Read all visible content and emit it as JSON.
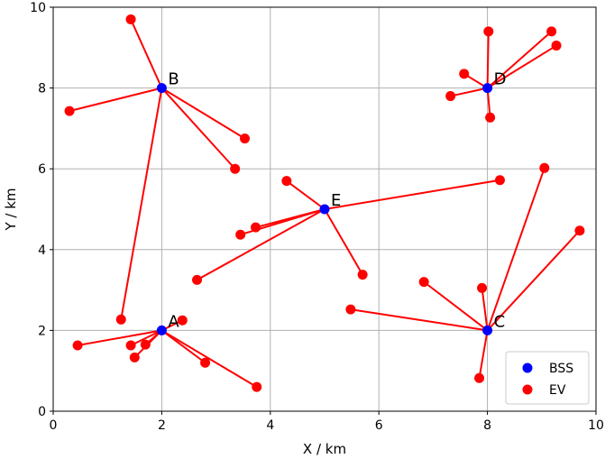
{
  "chart_data": {
    "type": "scatter",
    "xlabel": "X / km",
    "ylabel": "Y / km",
    "xlim": [
      0,
      10
    ],
    "ylim": [
      0,
      10
    ],
    "xticks": [
      "0",
      "2",
      "4",
      "6",
      "8",
      "10"
    ],
    "yticks": [
      "0",
      "2",
      "4",
      "6",
      "8",
      "10"
    ],
    "grid": true,
    "legend": {
      "placement": "bottom-right",
      "entries": [
        {
          "label": "BSS",
          "color": "#0000ff"
        },
        {
          "label": "EV",
          "color": "#ff0000"
        }
      ]
    },
    "series": [
      {
        "name": "BSS",
        "color": "#0000ff",
        "points": [
          {
            "label": "A",
            "x": 2.0,
            "y": 2.0
          },
          {
            "label": "B",
            "x": 2.0,
            "y": 8.0
          },
          {
            "label": "C",
            "x": 8.0,
            "y": 2.0
          },
          {
            "label": "D",
            "x": 8.0,
            "y": 8.0
          },
          {
            "label": "E",
            "x": 5.0,
            "y": 5.0
          }
        ]
      },
      {
        "name": "EV",
        "color": "#ff0000",
        "points": [
          {
            "x": 0.45,
            "y": 1.63,
            "station": "A"
          },
          {
            "x": 1.43,
            "y": 1.63,
            "station": "A"
          },
          {
            "x": 1.5,
            "y": 1.33,
            "station": "A"
          },
          {
            "x": 1.7,
            "y": 1.65,
            "station": "A"
          },
          {
            "x": 2.38,
            "y": 2.25,
            "station": "A"
          },
          {
            "x": 2.8,
            "y": 1.2,
            "station": "A"
          },
          {
            "x": 3.75,
            "y": 0.6,
            "station": "A"
          },
          {
            "x": 1.43,
            "y": 9.7,
            "station": "B"
          },
          {
            "x": 0.3,
            "y": 7.43,
            "station": "B"
          },
          {
            "x": 3.53,
            "y": 6.75,
            "station": "B"
          },
          {
            "x": 3.35,
            "y": 6.0,
            "station": "B"
          },
          {
            "x": 1.25,
            "y": 2.27,
            "station": "B"
          },
          {
            "x": 6.83,
            "y": 3.2,
            "station": "C"
          },
          {
            "x": 7.9,
            "y": 3.05,
            "station": "C"
          },
          {
            "x": 5.48,
            "y": 2.52,
            "station": "C"
          },
          {
            "x": 7.85,
            "y": 0.82,
            "station": "C"
          },
          {
            "x": 9.05,
            "y": 6.02,
            "station": "C"
          },
          {
            "x": 9.7,
            "y": 4.47,
            "station": "C"
          },
          {
            "x": 8.02,
            "y": 9.4,
            "station": "D"
          },
          {
            "x": 9.18,
            "y": 9.4,
            "station": "D"
          },
          {
            "x": 9.27,
            "y": 9.05,
            "station": "D"
          },
          {
            "x": 7.57,
            "y": 8.35,
            "station": "D"
          },
          {
            "x": 7.32,
            "y": 7.8,
            "station": "D"
          },
          {
            "x": 8.05,
            "y": 7.27,
            "station": "D"
          },
          {
            "x": 4.3,
            "y": 5.7,
            "station": "E"
          },
          {
            "x": 8.23,
            "y": 5.72,
            "station": "E"
          },
          {
            "x": 3.73,
            "y": 4.55,
            "station": "E"
          },
          {
            "x": 3.45,
            "y": 4.37,
            "station": "E"
          },
          {
            "x": 5.7,
            "y": 3.38,
            "station": "E"
          },
          {
            "x": 2.65,
            "y": 3.25,
            "station": "E"
          }
        ]
      }
    ]
  }
}
